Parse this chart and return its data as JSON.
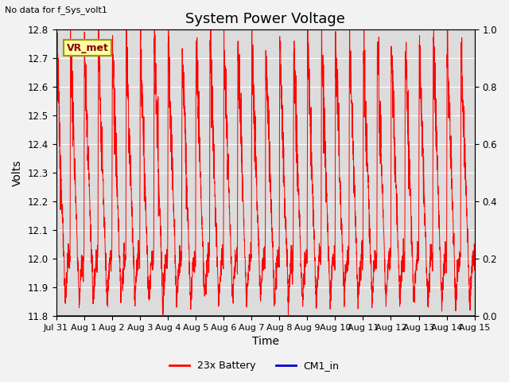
{
  "title": "System Power Voltage",
  "xlabel": "Time",
  "ylabel": "Volts",
  "top_left_text": "No data for f_Sys_volt1",
  "vr_met_label": "VR_met",
  "ylim_left": [
    11.8,
    12.8
  ],
  "ylim_right": [
    0.0,
    1.0
  ],
  "yticks_left": [
    11.8,
    11.9,
    12.0,
    12.1,
    12.2,
    12.3,
    12.4,
    12.5,
    12.6,
    12.7,
    12.8
  ],
  "yticks_right": [
    0.0,
    0.2,
    0.4,
    0.6,
    0.8,
    1.0
  ],
  "xticklabels": [
    "Jul 31",
    "Aug 1",
    "Aug 2",
    "Aug 3",
    "Aug 4",
    "Aug 5",
    "Aug 6",
    "Aug 7",
    "Aug 8",
    "Aug 9",
    "Aug 10",
    "Aug 11",
    "Aug 12",
    "Aug 13",
    "Aug 14",
    "Aug 15"
  ],
  "battery_color": "#FF0000",
  "cm1_color": "#0000CC",
  "plot_bg_color": "#DCDCDC",
  "fig_bg_color": "#F2F2F2",
  "title_fontsize": 13,
  "axis_label_fontsize": 10,
  "tick_fontsize": 8.5,
  "legend_labels": [
    "23x Battery",
    "CM1_in"
  ],
  "vr_box_facecolor": "#FFFFAA",
  "vr_box_edgecolor": "#999900",
  "n_days": 15,
  "n_points": 3000
}
